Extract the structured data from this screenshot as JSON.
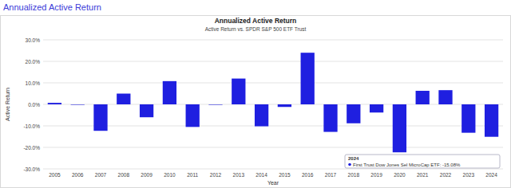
{
  "header": {
    "title": "Annualized Active Return"
  },
  "chart_data": {
    "type": "bar",
    "title": "Annualized Active Return",
    "subtitle": "Active Return vs. SPDR S&P 500 ETF Trust",
    "x_label": "Year",
    "y_label": "Active Return",
    "categories": [
      "2005",
      "2006",
      "2007",
      "2008",
      "2009",
      "2010",
      "2011",
      "2012",
      "2013",
      "2014",
      "2015",
      "2016",
      "2017",
      "2018",
      "2019",
      "2020",
      "2021",
      "2022",
      "2023",
      "2024"
    ],
    "series": [
      {
        "name": "First Trust Dow Jones Sel MicroCap ETF",
        "color": "#1f1fe0",
        "values": [
          0.7,
          -0.2,
          -12.3,
          5.0,
          -6.0,
          10.8,
          -10.5,
          -0.2,
          12.0,
          -10.2,
          -1.2,
          24.0,
          -12.8,
          -8.8,
          -3.8,
          -22.3,
          6.3,
          6.6,
          -13.2,
          -15.08
        ]
      }
    ],
    "ylim": [
      -30,
      30
    ],
    "yticks": [
      {
        "value": -30,
        "label": "-30.0%"
      },
      {
        "value": -20,
        "label": "-20.0%"
      },
      {
        "value": -10,
        "label": "-10.0%"
      },
      {
        "value": 0,
        "label": "0.0%"
      },
      {
        "value": 10,
        "label": "10.0%"
      },
      {
        "value": 20,
        "label": "20.0%"
      },
      {
        "value": 30,
        "label": "30.0%"
      }
    ],
    "grid": true,
    "annotations": [
      "2024",
      "First Trust Dow Jones Sel MicroCap ETF: -15.08%"
    ]
  }
}
